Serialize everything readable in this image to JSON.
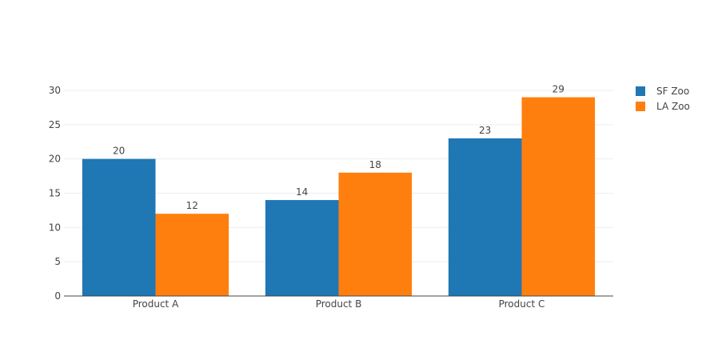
{
  "chart_data": {
    "type": "bar",
    "categories": [
      "Product A",
      "Product B",
      "Product C"
    ],
    "series": [
      {
        "name": "SF Zoo",
        "values": [
          20,
          14,
          23
        ],
        "color": "#1f77b4"
      },
      {
        "name": "LA Zoo",
        "values": [
          12,
          18,
          29
        ],
        "color": "#ff7f0e"
      }
    ],
    "ylim": [
      0,
      30
    ],
    "yticks": [
      0,
      5,
      10,
      15,
      20,
      25,
      30
    ],
    "grid": true,
    "legend_position": "top-right",
    "data_labels": true
  }
}
